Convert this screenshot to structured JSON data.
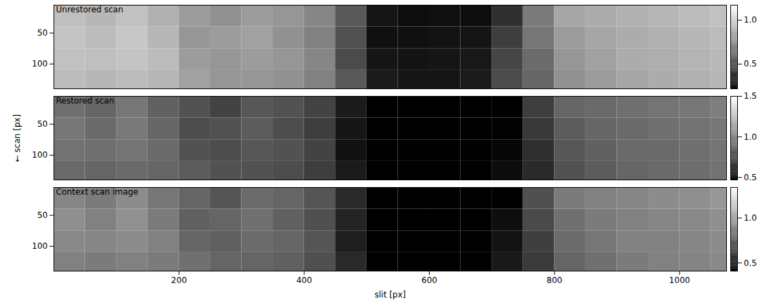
{
  "chart_data": {
    "type": "heatmap",
    "xlabel": "slit [px]",
    "ylabel": "← scan [px]",
    "xlim": [
      0,
      1075
    ],
    "xticks": [
      200,
      400,
      600,
      800,
      1000
    ],
    "ylim": [
      140,
      5
    ],
    "yticks": [
      50,
      100
    ],
    "x_edges": [
      0,
      50,
      100,
      150,
      200,
      250,
      300,
      350,
      400,
      450,
      500,
      550,
      600,
      650,
      700,
      750,
      800,
      850,
      900,
      950,
      1000,
      1050,
      1075
    ],
    "y_edges": [
      5,
      40,
      75,
      110,
      140
    ],
    "panels": [
      {
        "title": "Unrestored scan",
        "colorbar": {
          "range": [
            0.22,
            1.17
          ],
          "ticks": [
            0.5,
            {
              "value": 1,
              "label": "1.0"
            }
          ]
        },
        "cells": [
          [
            0.93,
            0.9,
            0.94,
            0.88,
            0.8,
            0.76,
            0.8,
            0.78,
            0.72,
            0.55,
            0.3,
            0.27,
            0.28,
            0.27,
            0.4,
            0.68,
            0.84,
            0.86,
            0.88,
            0.9,
            0.92,
            0.94
          ],
          [
            0.95,
            0.92,
            0.96,
            0.9,
            0.78,
            0.8,
            0.82,
            0.76,
            0.7,
            0.52,
            0.28,
            0.28,
            0.29,
            0.3,
            0.45,
            0.66,
            0.8,
            0.84,
            0.86,
            0.88,
            0.9,
            0.92
          ],
          [
            0.94,
            0.93,
            0.95,
            0.92,
            0.8,
            0.78,
            0.8,
            0.78,
            0.72,
            0.5,
            0.3,
            0.29,
            0.3,
            0.31,
            0.48,
            0.62,
            0.78,
            0.82,
            0.86,
            0.87,
            0.89,
            0.91
          ],
          [
            0.92,
            0.9,
            0.92,
            0.9,
            0.82,
            0.78,
            0.78,
            0.76,
            0.7,
            0.55,
            0.32,
            0.3,
            0.3,
            0.32,
            0.5,
            0.6,
            0.76,
            0.8,
            0.84,
            0.86,
            0.88,
            0.9
          ]
        ]
      },
      {
        "title": "Restored scan",
        "colorbar": {
          "range": [
            0.47,
            1.5
          ],
          "ticks": [
            0.5,
            {
              "value": 1,
              "label": "1.0"
            },
            1.5
          ]
        },
        "cells": [
          [
            0.92,
            0.88,
            0.95,
            0.86,
            0.8,
            0.74,
            0.82,
            0.8,
            0.74,
            0.58,
            0.33,
            0.3,
            0.31,
            0.3,
            0.42,
            0.72,
            0.88,
            0.9,
            0.92,
            0.94,
            0.95,
            0.98
          ],
          [
            0.95,
            0.9,
            0.96,
            0.88,
            0.78,
            0.8,
            0.84,
            0.78,
            0.72,
            0.56,
            0.3,
            0.3,
            0.32,
            0.32,
            0.48,
            0.7,
            0.84,
            0.88,
            0.9,
            0.92,
            0.93,
            0.95
          ],
          [
            0.93,
            0.92,
            0.94,
            0.9,
            0.8,
            0.78,
            0.82,
            0.8,
            0.74,
            0.54,
            0.32,
            0.31,
            0.32,
            0.33,
            0.5,
            0.66,
            0.82,
            0.86,
            0.9,
            0.9,
            0.92,
            0.94
          ],
          [
            0.9,
            0.88,
            0.9,
            0.88,
            0.84,
            0.8,
            0.8,
            0.78,
            0.72,
            0.58,
            0.34,
            0.32,
            0.32,
            0.34,
            0.52,
            0.64,
            0.8,
            0.84,
            0.88,
            0.9,
            0.91,
            0.93
          ]
        ]
      },
      {
        "title": "Context scan image",
        "colorbar": {
          "range": [
            0.41,
            1.34
          ],
          "ticks": [
            0.5,
            {
              "value": 1,
              "label": "1.0"
            }
          ]
        },
        "cells": [
          [
            0.9,
            0.86,
            0.92,
            0.84,
            0.78,
            0.72,
            0.8,
            0.78,
            0.72,
            0.56,
            0.3,
            0.28,
            0.29,
            0.28,
            0.4,
            0.7,
            0.86,
            0.88,
            0.9,
            0.92,
            0.93,
            0.96
          ],
          [
            0.93,
            0.88,
            0.94,
            0.86,
            0.76,
            0.78,
            0.82,
            0.76,
            0.7,
            0.54,
            0.29,
            0.29,
            0.3,
            0.31,
            0.46,
            0.68,
            0.82,
            0.86,
            0.88,
            0.9,
            0.91,
            0.93
          ],
          [
            0.91,
            0.9,
            0.92,
            0.88,
            0.78,
            0.76,
            0.8,
            0.78,
            0.72,
            0.52,
            0.31,
            0.3,
            0.31,
            0.32,
            0.48,
            0.64,
            0.8,
            0.84,
            0.88,
            0.88,
            0.9,
            0.92
          ],
          [
            0.88,
            0.86,
            0.88,
            0.86,
            0.82,
            0.78,
            0.78,
            0.76,
            0.7,
            0.56,
            0.33,
            0.31,
            0.31,
            0.33,
            0.5,
            0.62,
            0.78,
            0.82,
            0.86,
            0.88,
            0.89,
            0.91
          ]
        ]
      }
    ]
  }
}
